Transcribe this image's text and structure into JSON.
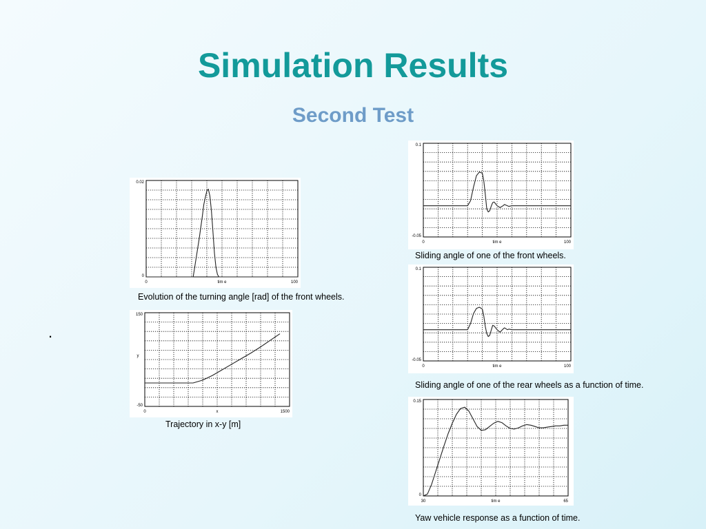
{
  "slide": {
    "title": "Simulation Results",
    "subtitle": "Second Test",
    "bullet": "."
  },
  "captions": {
    "turning": "Evolution of the turning angle [rad] of the front wheels.",
    "trajectory": "Trajectory in x-y [m]",
    "front_slide": "Sliding angle of one of the front wheels.",
    "rear_slide": "Sliding angle of one of the rear wheels as a function of time.",
    "yaw": "Yaw vehicle response as a function of time."
  },
  "chart_data": [
    {
      "id": "turning",
      "type": "line",
      "xlabel": "tim e",
      "ylabel": "",
      "xlim": [
        0,
        100
      ],
      "ylim": [
        0,
        0.02
      ],
      "xticks": [
        "0",
        "100"
      ],
      "yticks": [
        "0",
        "0.02"
      ],
      "grid": true,
      "series": [
        {
          "x": [
            0,
            31,
            33,
            35,
            37,
            38,
            39,
            40,
            41,
            42,
            43,
            44,
            45,
            46,
            47,
            48,
            100
          ],
          "y": [
            0,
            0,
            0.004,
            0.008,
            0.0125,
            0.015,
            0.0165,
            0.0178,
            0.0182,
            0.0168,
            0.0138,
            0.0095,
            0.005,
            0.002,
            0.0005,
            0,
            0
          ]
        }
      ]
    },
    {
      "id": "trajectory",
      "type": "line",
      "xlabel": "x",
      "ylabel": "y",
      "xlim": [
        0,
        1500
      ],
      "ylim": [
        -50,
        150
      ],
      "xticks": [
        "0",
        "1500"
      ],
      "yticks": [
        "-50",
        "150"
      ],
      "grid": true,
      "series": [
        {
          "x": [
            0,
            500,
            600,
            700,
            800,
            900,
            1000,
            1100,
            1200,
            1300,
            1400
          ],
          "y": [
            0,
            0,
            6,
            16,
            28,
            40,
            52,
            64,
            77,
            91,
            105
          ]
        }
      ]
    },
    {
      "id": "front_slide",
      "type": "line",
      "xlabel": "tim e",
      "ylabel": "",
      "xlim": [
        0,
        100
      ],
      "ylim": [
        -0.05,
        0.1
      ],
      "xticks": [
        "0",
        "100"
      ],
      "yticks": [
        "-0.05",
        "0.1"
      ],
      "grid": true,
      "series": [
        {
          "x": [
            0,
            30,
            32,
            34,
            36,
            38,
            40,
            41,
            42,
            43,
            44,
            45,
            46,
            47,
            48,
            50,
            52,
            54,
            55,
            57,
            58,
            60,
            100
          ],
          "y": [
            0,
            0,
            0.008,
            0.03,
            0.048,
            0.054,
            0.052,
            0.04,
            0.018,
            -0.005,
            -0.01,
            -0.008,
            -0.001,
            0.005,
            0.006,
            0.0,
            -0.003,
            0.0,
            0.002,
            0.0,
            -0.001,
            0,
            0
          ]
        }
      ]
    },
    {
      "id": "rear_slide",
      "type": "line",
      "xlabel": "tim e",
      "ylabel": "",
      "xlim": [
        0,
        100
      ],
      "ylim": [
        -0.05,
        0.1
      ],
      "xticks": [
        "0",
        "100"
      ],
      "yticks": [
        "-0.05",
        "0.1"
      ],
      "grid": true,
      "series": [
        {
          "x": [
            0,
            30,
            32,
            34,
            36,
            38,
            40,
            41,
            42,
            43,
            44,
            45,
            46,
            47,
            48,
            50,
            52,
            54,
            55,
            57,
            58,
            60,
            100
          ],
          "y": [
            0,
            0,
            0.01,
            0.026,
            0.034,
            0.036,
            0.033,
            0.022,
            0.005,
            -0.006,
            -0.011,
            -0.009,
            -0.001,
            0.007,
            0.006,
            0.0,
            -0.004,
            0.001,
            0.003,
            0.0,
            0.001,
            0,
            0
          ]
        }
      ]
    },
    {
      "id": "yaw",
      "type": "line",
      "xlabel": "tim e",
      "ylabel": "",
      "xlim": [
        30,
        65
      ],
      "ylim": [
        0,
        0.15
      ],
      "xticks": [
        "30",
        "65"
      ],
      "yticks": [
        "0",
        "0.15"
      ],
      "grid": true,
      "series": [
        {
          "x": [
            30,
            31,
            32,
            33,
            34,
            35,
            36,
            37,
            38,
            39,
            40,
            41,
            42,
            43,
            44,
            45,
            46,
            47,
            48,
            49,
            50,
            51,
            52,
            53,
            54,
            55,
            56,
            57,
            58,
            59,
            60,
            61,
            62,
            63,
            64,
            65
          ],
          "y": [
            0,
            0.003,
            0.018,
            0.038,
            0.058,
            0.078,
            0.097,
            0.113,
            0.127,
            0.136,
            0.138,
            0.132,
            0.12,
            0.108,
            0.102,
            0.103,
            0.108,
            0.113,
            0.116,
            0.114,
            0.109,
            0.105,
            0.104,
            0.106,
            0.109,
            0.111,
            0.11,
            0.108,
            0.106,
            0.106,
            0.107,
            0.108,
            0.109,
            0.109,
            0.11,
            0.11
          ]
        }
      ]
    }
  ]
}
